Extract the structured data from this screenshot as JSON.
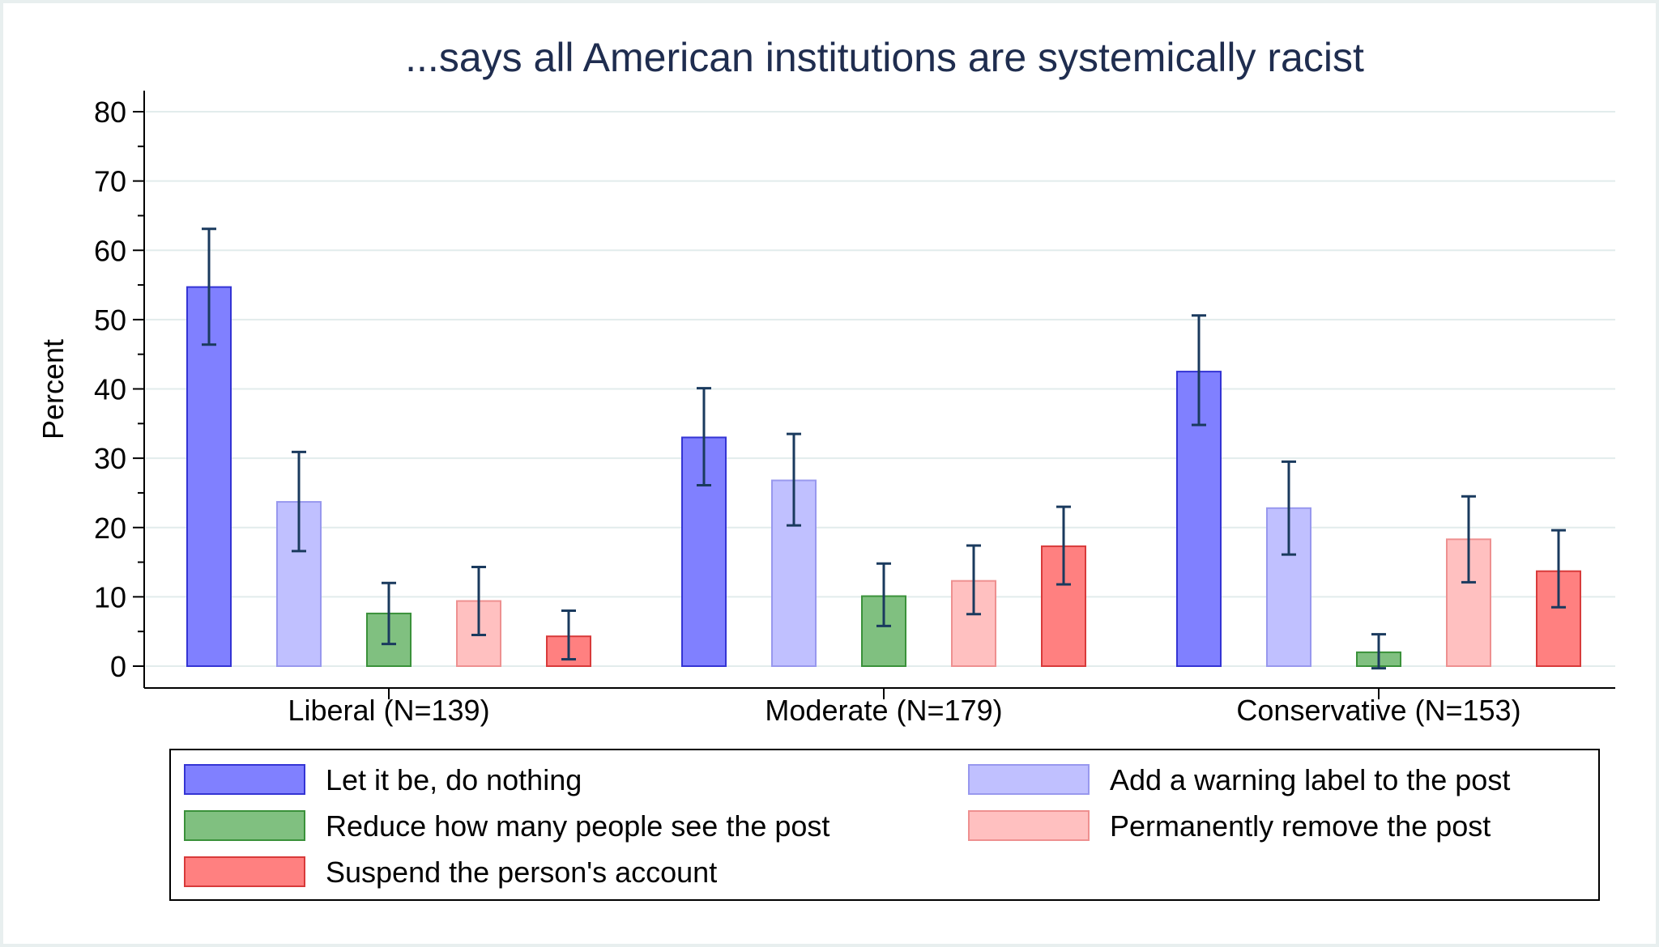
{
  "chart_data": {
    "type": "bar",
    "title": "...says all American institutions are systemically racist",
    "ylabel": "Percent",
    "xlabel": "",
    "ylim": [
      0,
      80
    ],
    "yticks": [
      0,
      10,
      20,
      30,
      40,
      50,
      60,
      70,
      80
    ],
    "grid": true,
    "legend_position": "bottom",
    "categories": [
      "Liberal (N=139)",
      "Moderate (N=179)",
      "Conservative (N=153)"
    ],
    "series": [
      {
        "name": "Let it be, do nothing",
        "fill": "#8080ff",
        "stroke": "#3434d4",
        "values": [
          54.7,
          33.0,
          42.5
        ],
        "ci_low": [
          46.4,
          26.1,
          34.8
        ],
        "ci_high": [
          63.1,
          40.1,
          50.6
        ]
      },
      {
        "name": "Add a warning label to the post",
        "fill": "#c0c0ff",
        "stroke": "#9898ee",
        "values": [
          23.7,
          26.8,
          22.8
        ],
        "ci_low": [
          16.6,
          20.3,
          16.1
        ],
        "ci_high": [
          30.9,
          33.5,
          29.5
        ]
      },
      {
        "name": "Reduce how many people see the post",
        "fill": "#80c080",
        "stroke": "#3a913a",
        "values": [
          7.6,
          10.1,
          2.0
        ],
        "ci_low": [
          3.2,
          5.8,
          -0.3
        ],
        "ci_high": [
          12.0,
          14.8,
          4.6
        ]
      },
      {
        "name": "Permanently remove the post",
        "fill": "#ffc0c0",
        "stroke": "#ee9090",
        "values": [
          9.4,
          12.3,
          18.3
        ],
        "ci_low": [
          4.5,
          7.5,
          12.1
        ],
        "ci_high": [
          14.3,
          17.4,
          24.5
        ]
      },
      {
        "name": "Suspend the person's account",
        "fill": "#ff8080",
        "stroke": "#d83a3a",
        "values": [
          4.3,
          17.3,
          13.7
        ],
        "ci_low": [
          1.0,
          11.8,
          8.5
        ],
        "ci_high": [
          8.0,
          23.0,
          19.6
        ]
      }
    ]
  },
  "colors": {
    "background": "#e8efef",
    "plot_background": "#ffffff",
    "gridline": "#e2ecec",
    "title": "#1f2d4f",
    "error_bar": "#1a3a5e"
  }
}
